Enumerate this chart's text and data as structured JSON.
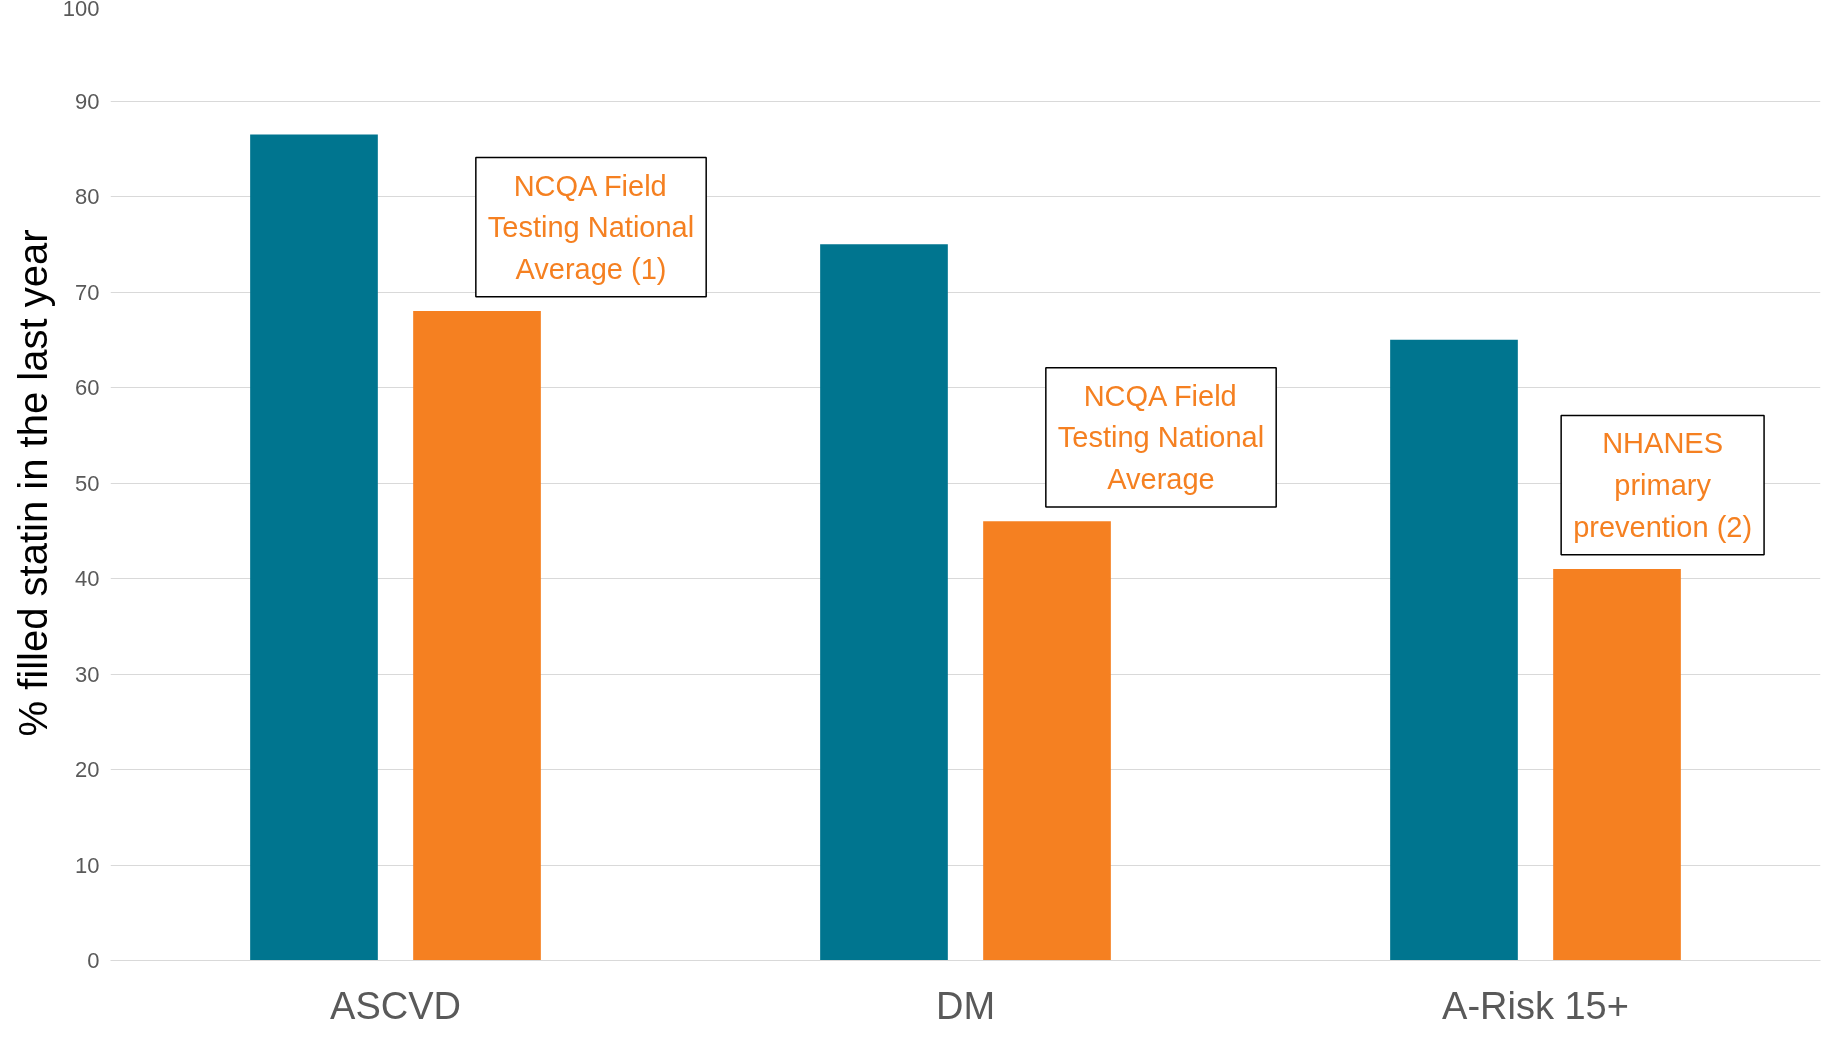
{
  "chart_data": {
    "type": "bar",
    "ylabel": "% filled statin in the last year",
    "categories": [
      "ASCVD",
      "DM",
      "A-Risk 15+"
    ],
    "series": [
      {
        "color": "#00758f",
        "values": [
          86.5,
          75,
          65
        ]
      },
      {
        "color": "#f58021",
        "values": [
          68,
          46,
          41
        ]
      }
    ],
    "ylim": [
      0,
      100
    ],
    "yticks": [
      0,
      10,
      20,
      30,
      40,
      50,
      60,
      70,
      80,
      90,
      100
    ],
    "grid": "y",
    "annotations": [
      "NCQA Field\nTesting National\nAverage (1)",
      "NCQA Field\nTesting National\nAverage",
      "NHANES\nprimary\nprevention (2)"
    ]
  }
}
